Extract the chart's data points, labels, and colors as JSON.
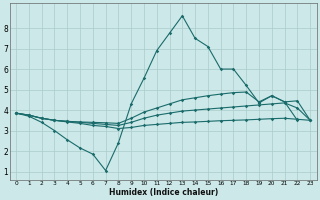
{
  "title": "",
  "xlabel": "Humidex (Indice chaleur)",
  "background_color": "#cce8e8",
  "grid_color": "#aacccc",
  "line_color": "#1a6b6b",
  "xlim": [
    -0.5,
    23.5
  ],
  "ylim": [
    0.6,
    9.2
  ],
  "yticks": [
    1,
    2,
    3,
    4,
    5,
    6,
    7,
    8
  ],
  "xticks": [
    0,
    1,
    2,
    3,
    4,
    5,
    6,
    7,
    8,
    9,
    10,
    11,
    12,
    13,
    14,
    15,
    16,
    17,
    18,
    19,
    20,
    21,
    22,
    23
  ],
  "line1_x": [
    0,
    1,
    2,
    3,
    4,
    5,
    6,
    7,
    8,
    9,
    10,
    11,
    12,
    13,
    14,
    15,
    16,
    17,
    18,
    19,
    20,
    21,
    22
  ],
  "line1_y": [
    3.85,
    3.7,
    3.4,
    3.0,
    2.55,
    2.15,
    1.85,
    1.05,
    2.4,
    4.3,
    5.55,
    6.9,
    7.75,
    8.6,
    7.5,
    7.1,
    6.0,
    6.0,
    5.2,
    4.35,
    4.7,
    4.4,
    3.5
  ],
  "line2_x": [
    0,
    1,
    2,
    3,
    4,
    5,
    6,
    7,
    8,
    9,
    10,
    11,
    12,
    13,
    14,
    15,
    16,
    17,
    18,
    19,
    20,
    21,
    22,
    23
  ],
  "line2_y": [
    3.85,
    3.75,
    3.6,
    3.5,
    3.45,
    3.42,
    3.4,
    3.38,
    3.35,
    3.6,
    3.9,
    4.1,
    4.3,
    4.5,
    4.6,
    4.7,
    4.78,
    4.85,
    4.88,
    4.4,
    4.7,
    4.4,
    4.45,
    3.5
  ],
  "line3_x": [
    0,
    1,
    2,
    3,
    4,
    5,
    6,
    7,
    8,
    9,
    10,
    11,
    12,
    13,
    14,
    15,
    16,
    17,
    18,
    19,
    20,
    21,
    22,
    23
  ],
  "line3_y": [
    3.85,
    3.75,
    3.6,
    3.5,
    3.45,
    3.4,
    3.35,
    3.3,
    3.25,
    3.4,
    3.6,
    3.75,
    3.85,
    3.95,
    4.0,
    4.05,
    4.1,
    4.15,
    4.2,
    4.25,
    4.3,
    4.35,
    4.1,
    3.5
  ],
  "line4_x": [
    0,
    1,
    2,
    3,
    4,
    5,
    6,
    7,
    8,
    9,
    10,
    11,
    12,
    13,
    14,
    15,
    16,
    17,
    18,
    19,
    20,
    21,
    22,
    23
  ],
  "line4_y": [
    3.85,
    3.75,
    3.6,
    3.5,
    3.42,
    3.35,
    3.25,
    3.2,
    3.1,
    3.15,
    3.25,
    3.3,
    3.35,
    3.4,
    3.42,
    3.45,
    3.48,
    3.5,
    3.52,
    3.55,
    3.58,
    3.6,
    3.55,
    3.5
  ]
}
